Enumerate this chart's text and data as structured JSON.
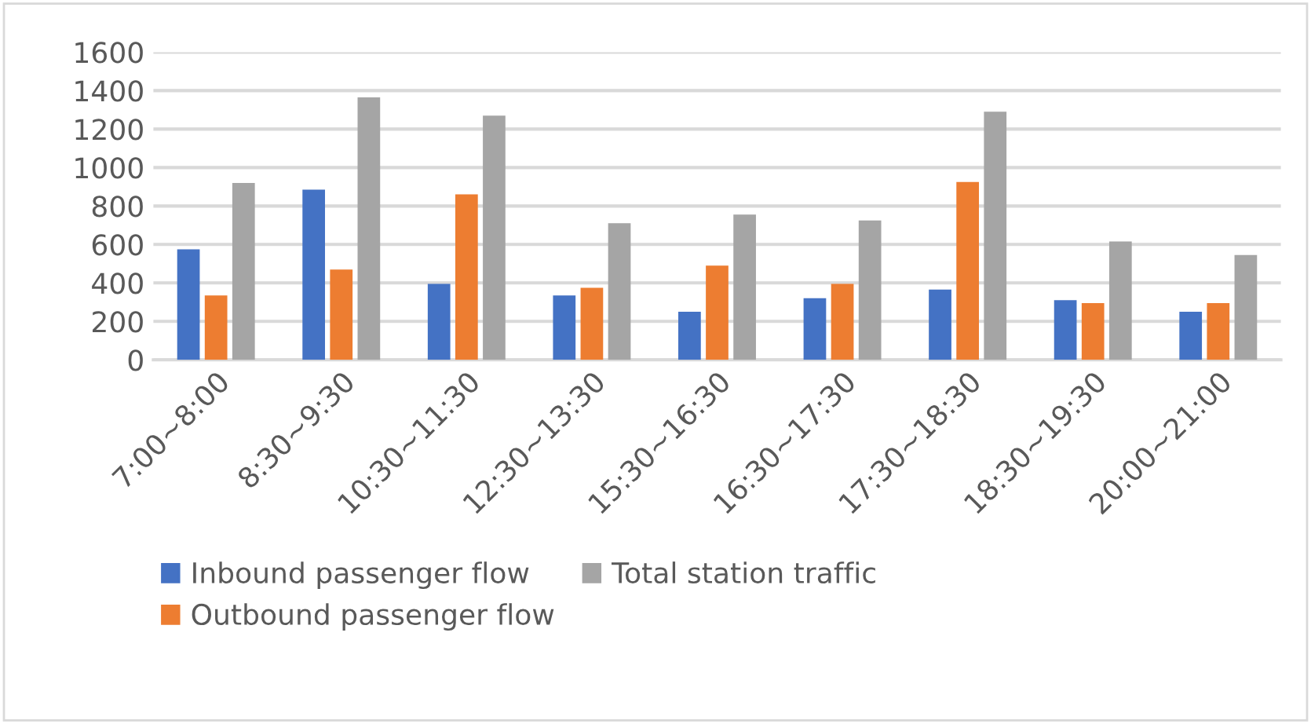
{
  "chart_data": {
    "type": "bar",
    "categories": [
      "7:00~8:00",
      "8:30~9:30",
      "10:30~11:30",
      "12:30~13:30",
      "15:30~16:30",
      "16:30~17:30",
      "17:30~18:30",
      "18:30~19:30",
      "20:00~21:00"
    ],
    "series": [
      {
        "name": "Inbound passenger flow",
        "color": "#4472c4",
        "values": [
          575,
          885,
          395,
          335,
          250,
          320,
          365,
          310,
          250
        ]
      },
      {
        "name": "Outbound passenger flow",
        "color": "#ed7d31",
        "values": [
          335,
          470,
          860,
          375,
          490,
          395,
          925,
          295,
          295
        ]
      },
      {
        "name": "Total station traffic",
        "color": "#a5a5a5",
        "values": [
          920,
          1365,
          1270,
          710,
          755,
          725,
          1290,
          615,
          545
        ]
      }
    ],
    "ylim": [
      0,
      1600
    ],
    "yticks": [
      0,
      200,
      400,
      600,
      800,
      1000,
      1200,
      1400,
      1600
    ],
    "grid": "y",
    "legend": "bottom"
  }
}
